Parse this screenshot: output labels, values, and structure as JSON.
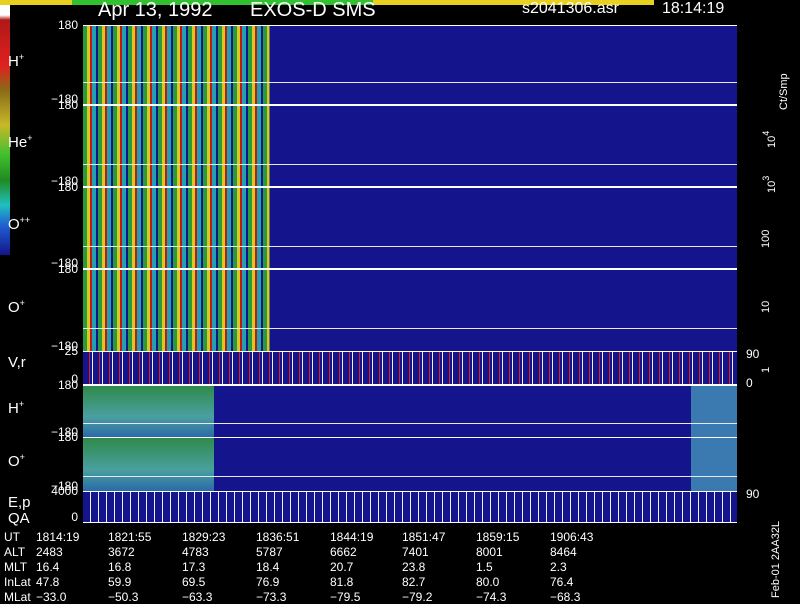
{
  "header": {
    "date": "Apr 13, 1992",
    "instrument": "EXOS-D SMS",
    "file": "s2041306.asr",
    "time": "18:14:19"
  },
  "panels": [
    {
      "label": "H",
      "sup": "+",
      "ticks": [
        "180",
        "−180"
      ]
    },
    {
      "label": "He",
      "sup": "+",
      "ticks": [
        "180",
        "−180"
      ]
    },
    {
      "label": "O",
      "sup": "++",
      "ticks": [
        "180",
        "−180"
      ]
    },
    {
      "label": "O",
      "sup": "+",
      "ticks": [
        "180",
        "−180"
      ]
    },
    {
      "label": "V,r",
      "ticks": [
        "25",
        "0"
      ],
      "right_ticks": [
        "90",
        "0"
      ]
    },
    {
      "label": "H",
      "sup": "+",
      "ticks": [
        "180",
        "−180"
      ]
    },
    {
      "label": "O",
      "sup": "+",
      "ticks": [
        "180",
        "−180"
      ]
    },
    {
      "label": "E,p",
      "ticks": [
        "4000",
        "0"
      ],
      "right_ticks": [
        "90"
      ]
    }
  ],
  "qa_label": "QA",
  "colorbar": {
    "unit": "Ct/Smp",
    "labels": [
      {
        "base": "10",
        "exp": "4"
      },
      {
        "base": "10",
        "exp": "3"
      },
      {
        "base": "100"
      },
      {
        "base": "10"
      },
      {
        "base": "1"
      }
    ]
  },
  "table": {
    "rows": [
      {
        "name": "UT",
        "values": [
          "1814:19",
          "1821:55",
          "1829:23",
          "1836:51",
          "1844:19",
          "1851:47",
          "1859:15",
          "1906:43"
        ]
      },
      {
        "name": "ALT",
        "values": [
          "2483",
          "3672",
          "4783",
          "5787",
          "6662",
          "7401",
          "8001",
          "8464"
        ]
      },
      {
        "name": "MLT",
        "values": [
          "16.4",
          "16.8",
          "17.3",
          "18.4",
          "20.7",
          "23.8",
          "1.5",
          "2.3"
        ]
      },
      {
        "name": "InLat",
        "values": [
          "47.8",
          "59.9",
          "69.5",
          "76.9",
          "81.8",
          "82.7",
          "80.0",
          "76.4"
        ]
      },
      {
        "name": "MLat",
        "values": [
          "−33.0",
          "−50.3",
          "−63.3",
          "−73.3",
          "−79.5",
          "−79.2",
          "−74.3",
          "−68.3"
        ]
      }
    ]
  },
  "footer": "Feb-01 2AA32L"
}
